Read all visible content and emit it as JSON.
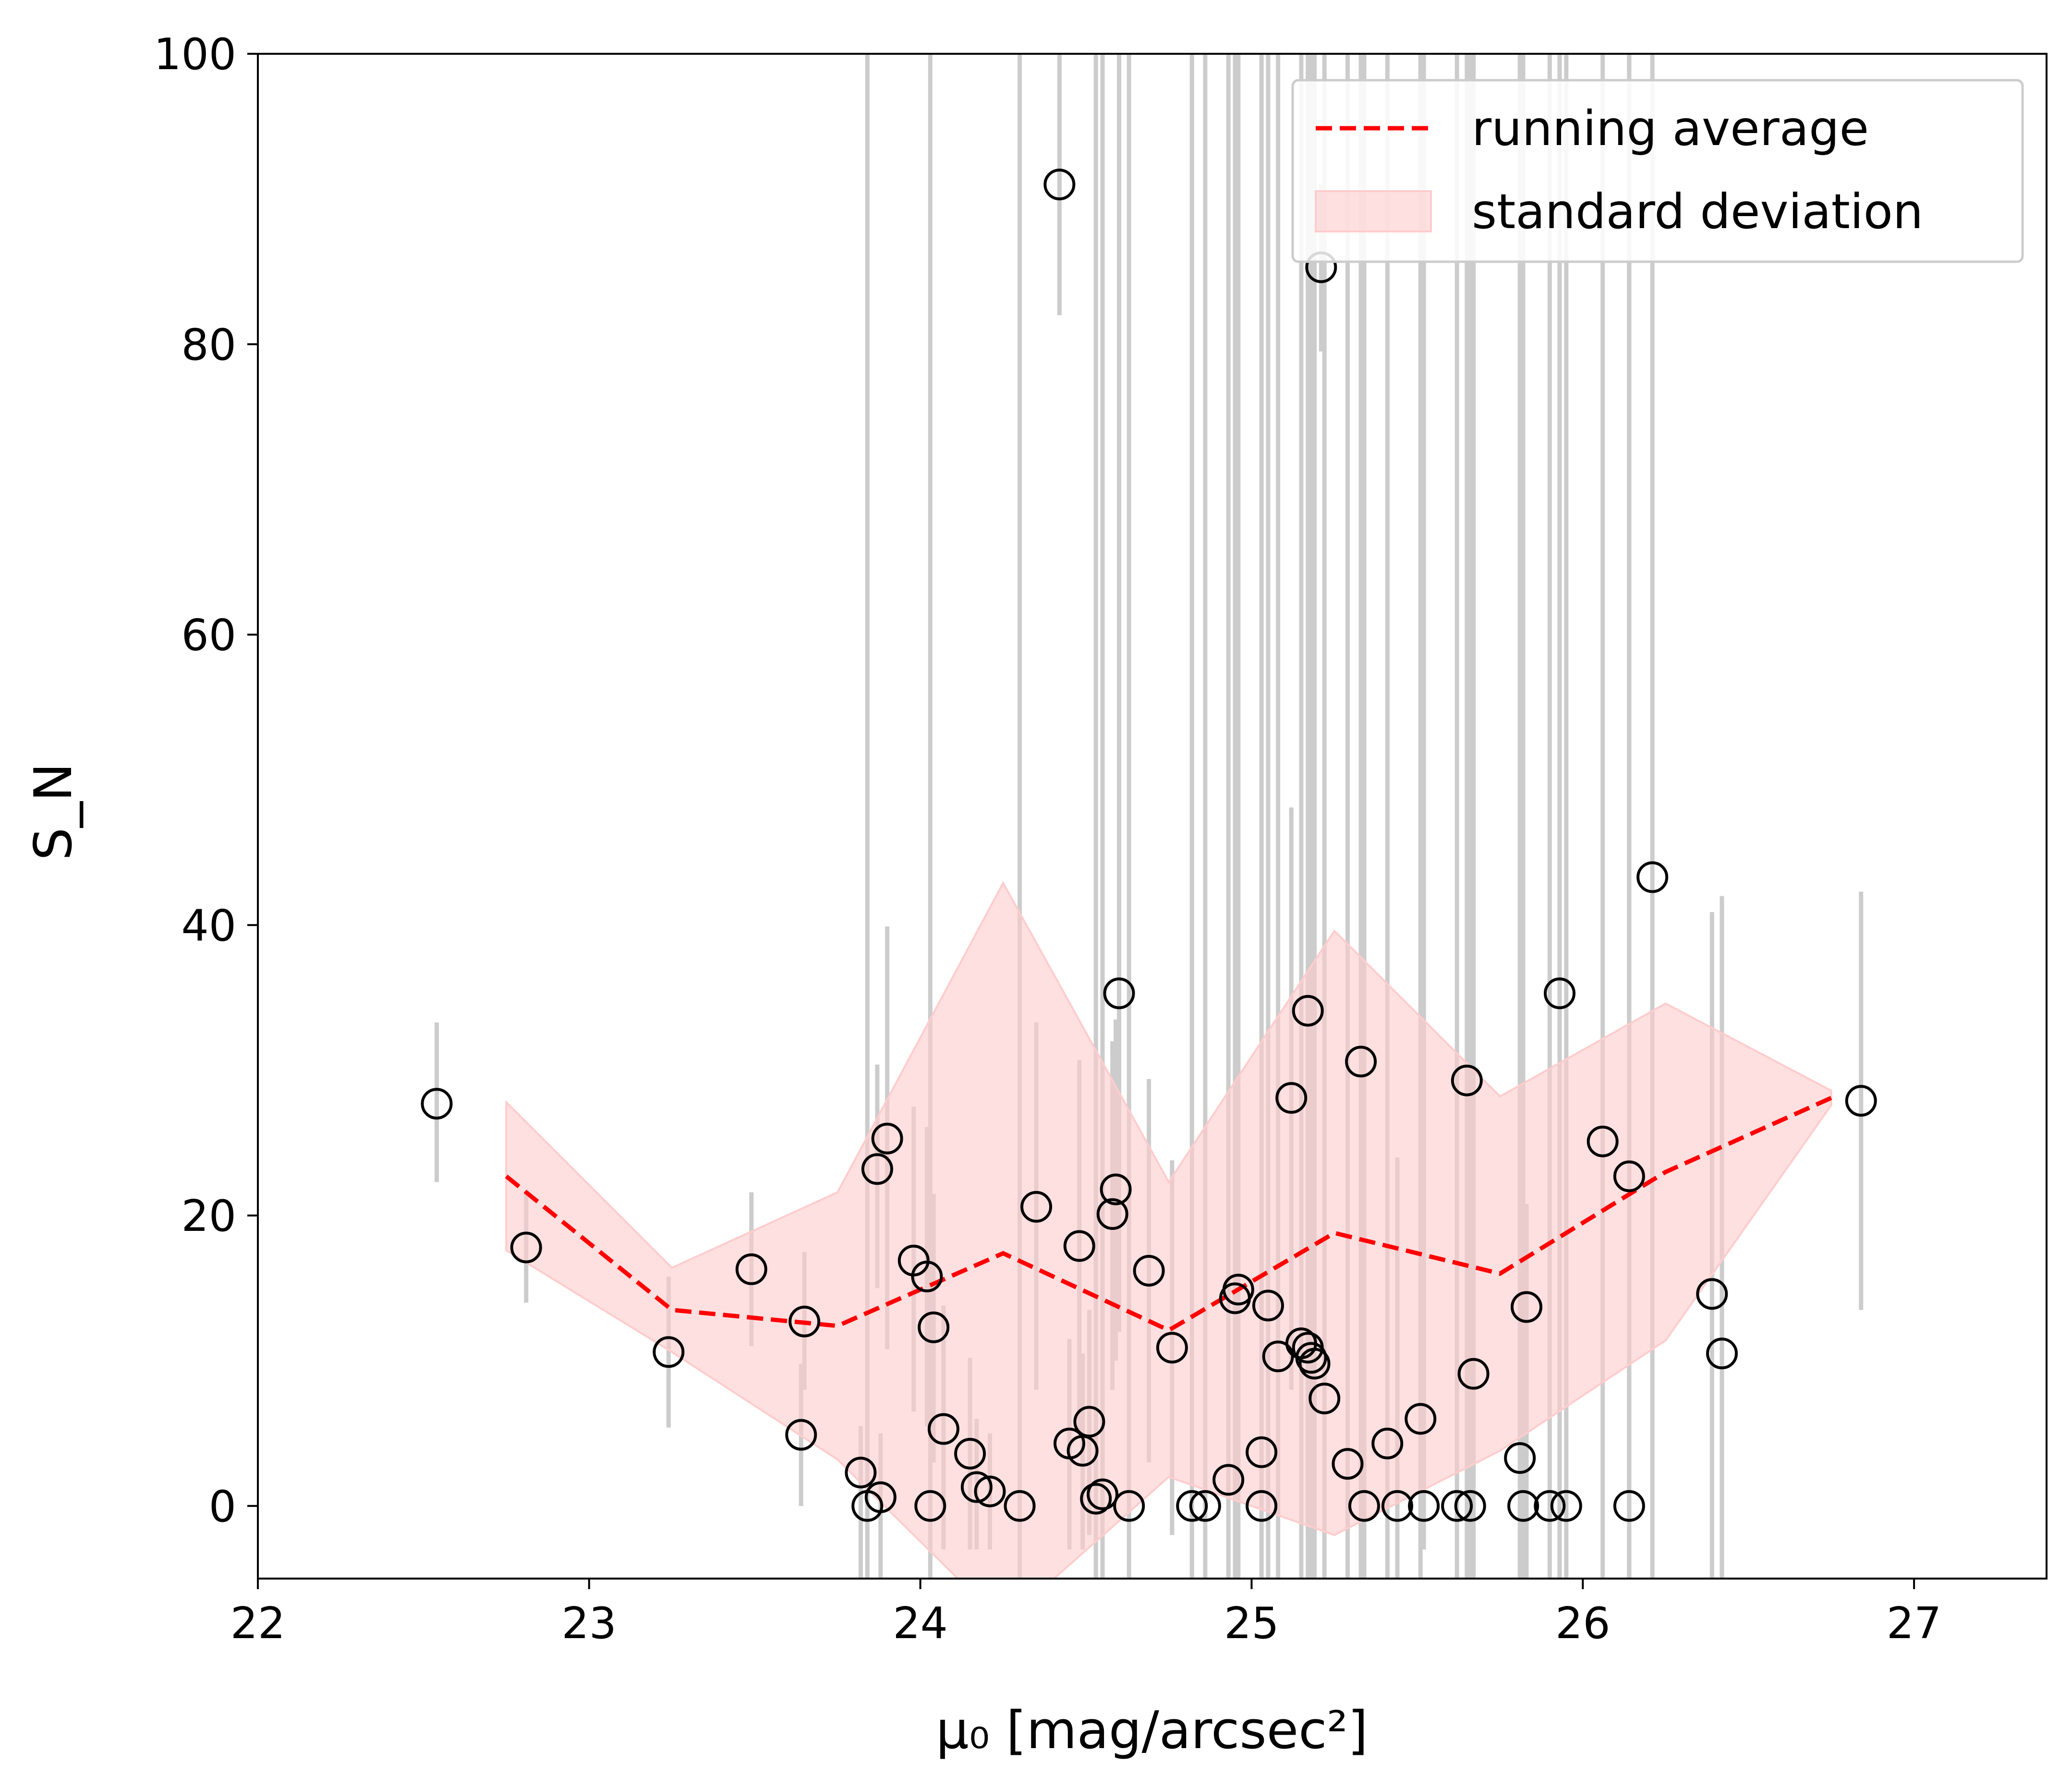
{
  "chart_data": {
    "type": "scatter",
    "xlabel": "μ₀ [mag/arcsec²]",
    "ylabel": "S_N",
    "xlim": [
      22,
      27.4
    ],
    "ylim": [
      -5,
      100
    ],
    "x_ticks": [
      22,
      23,
      24,
      25,
      26,
      27
    ],
    "y_ticks": [
      0,
      20,
      40,
      60,
      80,
      100
    ],
    "grid": false,
    "legend": {
      "placement": "top-right",
      "entries": [
        {
          "label": "running average",
          "color": "#ff0000",
          "style": "dashed-line"
        },
        {
          "label": "standard deviation",
          "color": "#ffcccc",
          "style": "filled-area"
        }
      ]
    },
    "points": [
      {
        "x": 22.54,
        "y": 27.7,
        "lo": 22.3,
        "hi": 33.3
      },
      {
        "x": 22.81,
        "y": 17.8,
        "lo": 14.0,
        "hi": 21.5
      },
      {
        "x": 23.24,
        "y": 10.6,
        "lo": 5.4,
        "hi": 15.8
      },
      {
        "x": 23.49,
        "y": 16.3,
        "lo": 11.0,
        "hi": 21.6
      },
      {
        "x": 23.64,
        "y": 4.9,
        "lo": 0.0,
        "hi": 9.8
      },
      {
        "x": 23.65,
        "y": 12.7,
        "lo": 8.0,
        "hi": 17.5
      },
      {
        "x": 23.82,
        "y": 2.3,
        "lo": -5,
        "hi": 5.5
      },
      {
        "x": 23.84,
        "y": 0.0,
        "lo": -5,
        "hi": 100
      },
      {
        "x": 23.87,
        "y": 23.2,
        "lo": 15.0,
        "hi": 30.4
      },
      {
        "x": 23.88,
        "y": 0.6,
        "lo": -5,
        "hi": 5.0
      },
      {
        "x": 23.9,
        "y": 25.3,
        "lo": 10.8,
        "hi": 39.9
      },
      {
        "x": 23.98,
        "y": 16.9,
        "lo": 6.5,
        "hi": 27.5
      },
      {
        "x": 24.02,
        "y": 15.8,
        "lo": 5.5,
        "hi": 26.1
      },
      {
        "x": 24.03,
        "y": 0.0,
        "lo": -5,
        "hi": 100
      },
      {
        "x": 24.04,
        "y": 12.3,
        "lo": 3.0,
        "hi": 21.5
      },
      {
        "x": 24.07,
        "y": 5.3,
        "lo": -3.0,
        "hi": 13.8
      },
      {
        "x": 24.15,
        "y": 3.6,
        "lo": -3.0,
        "hi": 10.2
      },
      {
        "x": 24.17,
        "y": 1.3,
        "lo": -3.0,
        "hi": 6.0
      },
      {
        "x": 24.21,
        "y": 1.0,
        "lo": -3.0,
        "hi": 5.0
      },
      {
        "x": 24.3,
        "y": 0.0,
        "lo": -5,
        "hi": 100
      },
      {
        "x": 24.35,
        "y": 20.6,
        "lo": 8.0,
        "hi": 33.3
      },
      {
        "x": 24.42,
        "y": 91.0,
        "lo": 82.0,
        "hi": 100
      },
      {
        "x": 24.45,
        "y": 4.3,
        "lo": -3.0,
        "hi": 11.5
      },
      {
        "x": 24.48,
        "y": 17.9,
        "lo": 5.0,
        "hi": 30.7
      },
      {
        "x": 24.49,
        "y": 3.8,
        "lo": -3.0,
        "hi": 10.5
      },
      {
        "x": 24.51,
        "y": 5.8,
        "lo": -2.0,
        "hi": 13.5
      },
      {
        "x": 24.53,
        "y": 0.5,
        "lo": -5,
        "hi": 100
      },
      {
        "x": 24.55,
        "y": 0.8,
        "lo": -5,
        "hi": 100
      },
      {
        "x": 24.58,
        "y": 20.1,
        "lo": 8.0,
        "hi": 32.0
      },
      {
        "x": 24.59,
        "y": 21.8,
        "lo": 10.0,
        "hi": 33.5
      },
      {
        "x": 24.6,
        "y": 35.3,
        "lo": 12.0,
        "hi": 100
      },
      {
        "x": 24.63,
        "y": 0.0,
        "lo": -5,
        "hi": 100
      },
      {
        "x": 24.69,
        "y": 16.2,
        "lo": 3.0,
        "hi": 29.4
      },
      {
        "x": 24.76,
        "y": 10.9,
        "lo": -2.0,
        "hi": 23.8
      },
      {
        "x": 24.82,
        "y": 0.0,
        "lo": -5,
        "hi": 100
      },
      {
        "x": 24.86,
        "y": 0.0,
        "lo": -5,
        "hi": 100
      },
      {
        "x": 24.93,
        "y": 1.8,
        "lo": -5,
        "hi": 100
      },
      {
        "x": 24.95,
        "y": 14.3,
        "lo": -5,
        "hi": 100
      },
      {
        "x": 24.96,
        "y": 14.9,
        "lo": -5,
        "hi": 100
      },
      {
        "x": 25.03,
        "y": 3.7,
        "lo": -5,
        "hi": 100
      },
      {
        "x": 25.03,
        "y": 0.0,
        "lo": -5,
        "hi": 100
      },
      {
        "x": 25.05,
        "y": 13.8,
        "lo": -5,
        "hi": 100
      },
      {
        "x": 25.08,
        "y": 10.3,
        "lo": -5,
        "hi": 100
      },
      {
        "x": 25.12,
        "y": 28.1,
        "lo": 8.0,
        "hi": 48.1
      },
      {
        "x": 25.15,
        "y": 11.2,
        "lo": -5,
        "hi": 100
      },
      {
        "x": 25.17,
        "y": 10.9,
        "lo": -5,
        "hi": 100
      },
      {
        "x": 25.17,
        "y": 34.1,
        "lo": -5,
        "hi": 100
      },
      {
        "x": 25.18,
        "y": 10.2,
        "lo": -5,
        "hi": 100
      },
      {
        "x": 25.19,
        "y": 9.8,
        "lo": -5,
        "hi": 100
      },
      {
        "x": 25.21,
        "y": 85.3,
        "lo": 79.5,
        "hi": 91.0
      },
      {
        "x": 25.22,
        "y": 7.4,
        "lo": -5,
        "hi": 100
      },
      {
        "x": 25.29,
        "y": 2.9,
        "lo": -5,
        "hi": 100
      },
      {
        "x": 25.33,
        "y": 30.6,
        "lo": -5,
        "hi": 100
      },
      {
        "x": 25.34,
        "y": 0.0,
        "lo": -5,
        "hi": 100
      },
      {
        "x": 25.41,
        "y": 4.3,
        "lo": -5,
        "hi": 100
      },
      {
        "x": 25.44,
        "y": 0.0,
        "lo": -5,
        "hi": 24.0
      },
      {
        "x": 25.51,
        "y": 6.0,
        "lo": -5,
        "hi": 100
      },
      {
        "x": 25.52,
        "y": 0.0,
        "lo": -3.0,
        "hi": 100
      },
      {
        "x": 25.62,
        "y": 0.0,
        "lo": -5,
        "hi": 100
      },
      {
        "x": 25.65,
        "y": 29.3,
        "lo": -5,
        "hi": 100
      },
      {
        "x": 25.66,
        "y": 0.0,
        "lo": -5,
        "hi": 100
      },
      {
        "x": 25.67,
        "y": 9.1,
        "lo": -5,
        "hi": 100
      },
      {
        "x": 25.81,
        "y": 3.3,
        "lo": -5,
        "hi": 100
      },
      {
        "x": 25.82,
        "y": 0.0,
        "lo": -5,
        "hi": 100
      },
      {
        "x": 25.83,
        "y": 13.7,
        "lo": -5,
        "hi": 20.8
      },
      {
        "x": 25.9,
        "y": 0.0,
        "lo": -5,
        "hi": 100
      },
      {
        "x": 25.93,
        "y": 35.3,
        "lo": -5,
        "hi": 100
      },
      {
        "x": 25.95,
        "y": 0.0,
        "lo": -5,
        "hi": 100
      },
      {
        "x": 26.06,
        "y": 25.1,
        "lo": -5,
        "hi": 100
      },
      {
        "x": 26.14,
        "y": 0.0,
        "lo": -5,
        "hi": 100
      },
      {
        "x": 26.14,
        "y": 22.7,
        "lo": -5,
        "hi": 100
      },
      {
        "x": 26.21,
        "y": 43.3,
        "lo": -5,
        "hi": 100
      },
      {
        "x": 26.39,
        "y": 14.6,
        "lo": -5,
        "hi": 40.9
      },
      {
        "x": 26.42,
        "y": 10.5,
        "lo": -5,
        "hi": 42.0
      },
      {
        "x": 26.84,
        "y": 27.9,
        "lo": 13.5,
        "hi": 42.3
      }
    ],
    "running_average": {
      "x": [
        22.75,
        23.25,
        23.75,
        24.25,
        24.75,
        25.25,
        25.75,
        26.25,
        26.75
      ],
      "mean": [
        22.7,
        13.5,
        12.4,
        17.4,
        12.1,
        18.8,
        16.0,
        23.0,
        28.1
      ],
      "upper": [
        27.8,
        16.4,
        21.6,
        42.9,
        22.3,
        39.6,
        28.2,
        34.6,
        28.6
      ],
      "lower": [
        17.6,
        10.6,
        3.2,
        -8.1,
        2.0,
        -2.0,
        3.8,
        11.4,
        27.6
      ]
    }
  }
}
